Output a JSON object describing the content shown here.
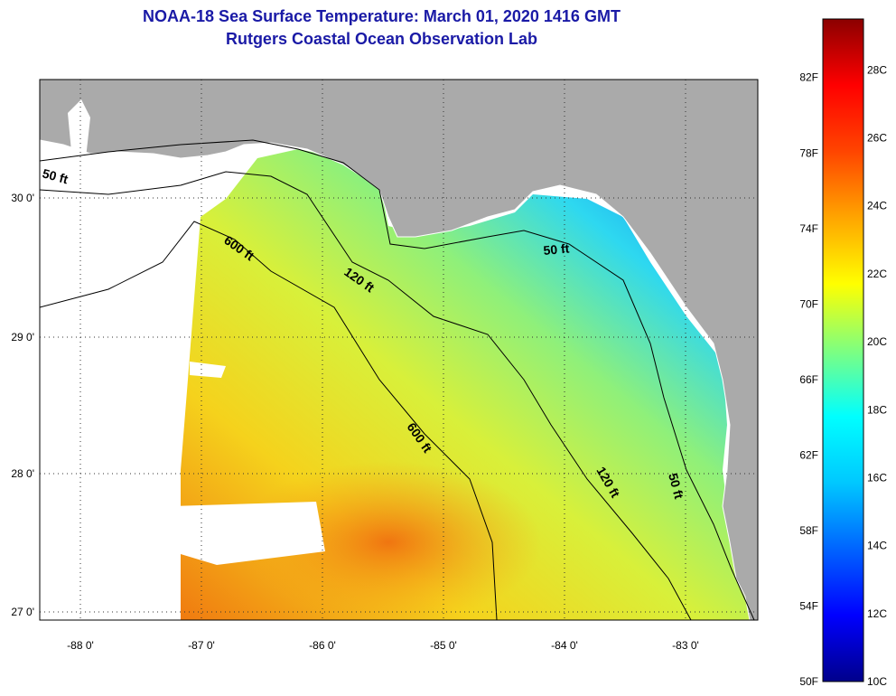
{
  "title": {
    "line1": "NOAA-18 Sea Surface Temperature:  March 01, 2020 1416 GMT",
    "line2": "Rutgers Coastal Ocean Observation Lab"
  },
  "axes": {
    "longitude_ticks": [
      "-88 0'",
      "-87 0'",
      "-86 0'",
      "-85 0'",
      "-84 0'",
      "-83 0'"
    ],
    "latitude_ticks": [
      "30 0'",
      "29 0'",
      "28 0'",
      "27 0'"
    ]
  },
  "contours": {
    "labels": [
      "50 ft",
      "600 ft",
      "120 ft",
      "50 ft",
      "600 ft",
      "120 ft",
      "50 ft"
    ]
  },
  "colorbar": {
    "fahrenheit_labels": [
      "82F",
      "78F",
      "74F",
      "70F",
      "66F",
      "62F",
      "58F",
      "54F",
      "50F"
    ],
    "celsius_labels": [
      "28C",
      "26C",
      "24C",
      "22C",
      "20C",
      "18C",
      "16C",
      "14C",
      "12C",
      "10C"
    ],
    "range_c": [
      10,
      29.5
    ],
    "gradient_colors": [
      "#00008b",
      "#0000ff",
      "#0064ff",
      "#00c8ff",
      "#00ffff",
      "#7fff7f",
      "#ffff00",
      "#ffa500",
      "#ff4500",
      "#ff0000",
      "#8b0000"
    ]
  },
  "colors": {
    "land": "#aaaaaa",
    "no_data": "#ffffff",
    "title": "#1a1aa6"
  }
}
